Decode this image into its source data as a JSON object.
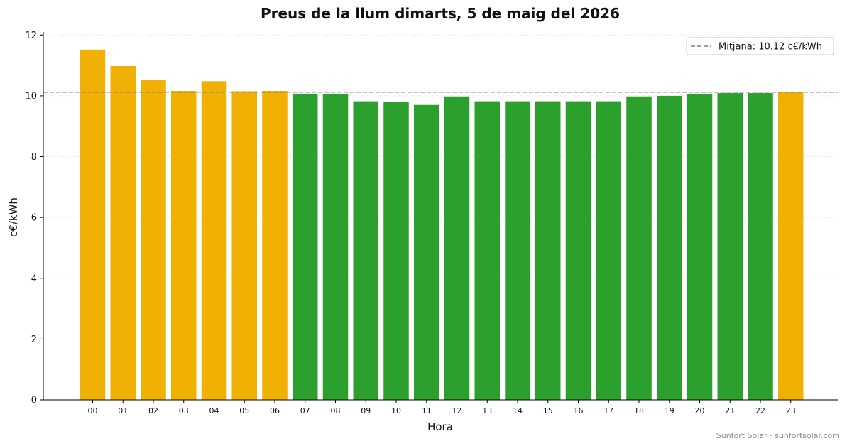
{
  "chart_data": {
    "type": "bar",
    "title": "Preus de la llum dimarts, 5 de maig del 2026",
    "xlabel": "Hora",
    "ylabel": "c€/kWh",
    "ylim": [
      0,
      12.1
    ],
    "yticks": [
      0,
      2,
      4,
      6,
      8,
      10,
      12
    ],
    "grid": "horizontal dotted",
    "legend_position": "top-right",
    "categories": [
      "00",
      "01",
      "02",
      "03",
      "04",
      "05",
      "06",
      "07",
      "08",
      "09",
      "10",
      "11",
      "12",
      "13",
      "14",
      "15",
      "16",
      "17",
      "18",
      "19",
      "20",
      "21",
      "22",
      "23"
    ],
    "values": [
      11.52,
      10.98,
      10.52,
      10.16,
      10.48,
      10.15,
      10.16,
      10.07,
      10.05,
      9.82,
      9.79,
      9.7,
      9.98,
      9.82,
      9.82,
      9.82,
      9.82,
      9.82,
      9.98,
      10.0,
      10.07,
      10.09,
      10.09,
      10.13
    ],
    "above_average_color": "#F0B004",
    "below_average_color": "#2CA02C",
    "average": 10.12,
    "average_line": {
      "label": "Mitjana: 10.12 c€/kWh",
      "color": "#808080",
      "style": "dashed"
    }
  },
  "footer": "Sunfort Solar · sunfortsolar.com"
}
